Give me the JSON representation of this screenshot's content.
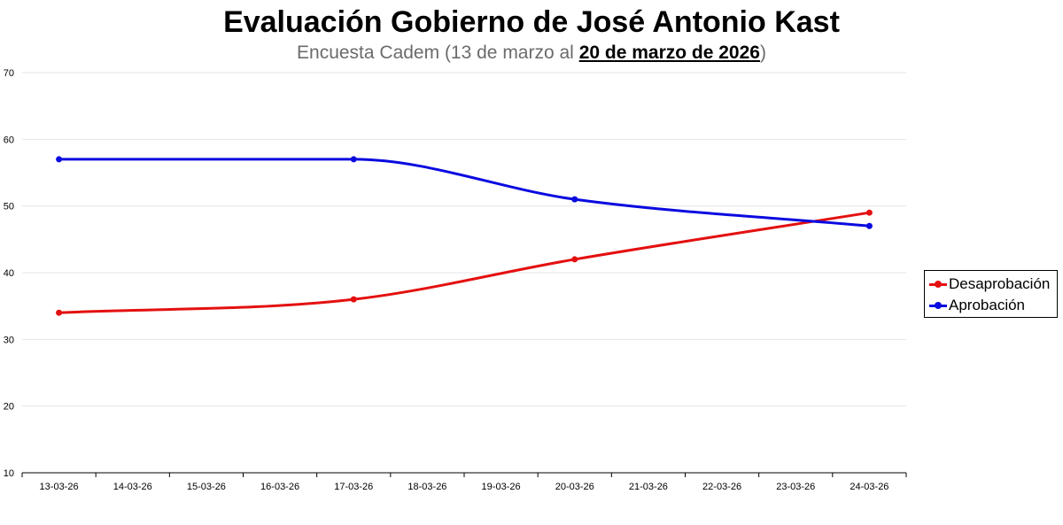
{
  "header": {
    "title": "Evaluación Gobierno de José Antonio Kast",
    "subtitle_prefix": "Encuesta Cadem (13 de marzo al ",
    "subtitle_date": "20 de marzo de 2026",
    "subtitle_suffix": ")"
  },
  "legend": {
    "items": [
      {
        "label": "Desaprobación",
        "color": "#e41010"
      },
      {
        "label": "Aprobación",
        "color": "#0a0ae0"
      }
    ]
  },
  "chart_data": {
    "type": "line",
    "title": "Evaluación Gobierno de José Antonio Kast",
    "subtitle": "Encuesta Cadem (13 de marzo al 20 de marzo de 2026)",
    "xlabel": "",
    "ylabel": "",
    "categories": [
      "13-03-26",
      "14-03-26",
      "15-03-26",
      "16-03-26",
      "17-03-26",
      "18-03-26",
      "19-03-26",
      "20-03-26",
      "21-03-26",
      "22-03-26",
      "23-03-26",
      "24-03-26"
    ],
    "ylim": [
      10,
      70
    ],
    "yticks": [
      10,
      20,
      30,
      40,
      50,
      60,
      70
    ],
    "grid": true,
    "legend_position": "right",
    "series": [
      {
        "name": "Desaprobación",
        "color": "#e41010",
        "points": [
          {
            "x": "13-03-26",
            "y": 34
          },
          {
            "x": "17-03-26",
            "y": 36
          },
          {
            "x": "20-03-26",
            "y": 42
          },
          {
            "x": "24-03-26",
            "y": 49
          }
        ]
      },
      {
        "name": "Aprobación",
        "color": "#0a0ae0",
        "points": [
          {
            "x": "13-03-26",
            "y": 57
          },
          {
            "x": "17-03-26",
            "y": 57
          },
          {
            "x": "20-03-26",
            "y": 51
          },
          {
            "x": "24-03-26",
            "y": 47
          }
        ]
      }
    ]
  }
}
